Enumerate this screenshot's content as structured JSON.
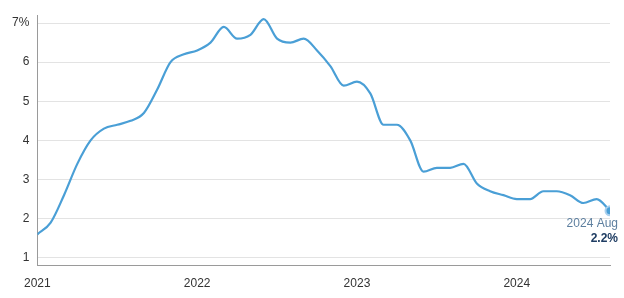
{
  "chart_data": {
    "type": "line",
    "categories": [
      "2021",
      null,
      null,
      null,
      null,
      null,
      null,
      null,
      null,
      null,
      null,
      null,
      "2022",
      null,
      null,
      null,
      null,
      null,
      null,
      null,
      null,
      null,
      null,
      null,
      "2023",
      null,
      null,
      null,
      null,
      null,
      null,
      null,
      null,
      null,
      null,
      null,
      "2024",
      null,
      null,
      null,
      null,
      null,
      null,
      null
    ],
    "values": [
      1.6,
      1.9,
      2.6,
      3.4,
      4.0,
      4.3,
      4.4,
      4.5,
      4.7,
      5.3,
      6.0,
      6.2,
      6.3,
      6.5,
      6.9,
      6.6,
      6.7,
      7.1,
      6.6,
      6.5,
      6.6,
      6.3,
      5.9,
      5.4,
      5.5,
      5.2,
      4.4,
      4.4,
      4.0,
      3.2,
      3.3,
      3.3,
      3.4,
      2.9,
      2.7,
      2.6,
      2.5,
      2.5,
      2.7,
      2.7,
      2.6,
      2.4,
      2.5,
      2.2
    ],
    "color": "#4a9fd6",
    "ylim": [
      0.8,
      7.2
    ],
    "yticks": [
      1,
      2,
      3,
      4,
      5,
      6,
      {
        "value": 7,
        "label": "7%"
      }
    ],
    "grid": true,
    "annotations": [
      {
        "text": "2024 Aug",
        "value": 2.2,
        "value_label": "2.2%"
      }
    ]
  }
}
